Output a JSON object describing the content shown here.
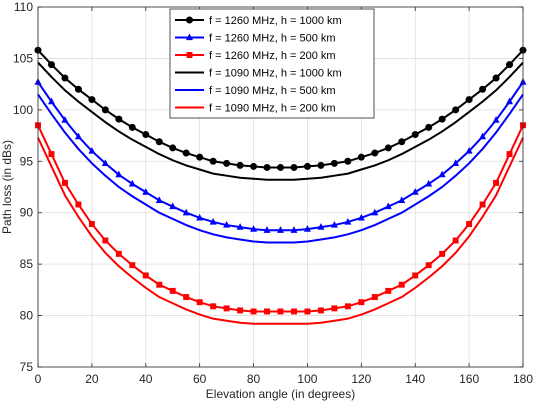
{
  "chart_data": {
    "type": "line",
    "xlabel": "Elevation angle (in degrees)",
    "ylabel": "Path loss (in dBs)",
    "xlim": [
      0,
      180
    ],
    "ylim": [
      75,
      110
    ],
    "xticks": [
      "0",
      "20",
      "40",
      "60",
      "80",
      "100",
      "120",
      "140",
      "160",
      "180"
    ],
    "yticks": [
      "75",
      "80",
      "85",
      "90",
      "95",
      "100",
      "105",
      "110"
    ],
    "grid": true,
    "legend_position": "top-center",
    "x": [
      0,
      5,
      10,
      15,
      20,
      25,
      30,
      35,
      40,
      45,
      50,
      55,
      60,
      65,
      70,
      75,
      80,
      85,
      90,
      95,
      100,
      105,
      110,
      115,
      120,
      125,
      130,
      135,
      140,
      145,
      150,
      155,
      160,
      165,
      170,
      175,
      180
    ],
    "series": [
      {
        "name": "f = 1260 MHz, h = 1000 km",
        "color": "#000000",
        "marker": "circle",
        "values": [
          105.8,
          104.4,
          103.1,
          102.0,
          101.0,
          100.0,
          99.1,
          98.3,
          97.6,
          96.9,
          96.3,
          95.8,
          95.4,
          95.0,
          94.8,
          94.6,
          94.5,
          94.4,
          94.4,
          94.4,
          94.5,
          94.6,
          94.8,
          95.0,
          95.4,
          95.8,
          96.3,
          96.9,
          97.6,
          98.3,
          99.1,
          100.0,
          101.0,
          102.0,
          103.1,
          104.4,
          105.8
        ]
      },
      {
        "name": "f = 1260 MHz, h = 500 km",
        "color": "#0000ff",
        "marker": "triangle",
        "values": [
          102.7,
          100.8,
          99.0,
          97.4,
          96.0,
          94.8,
          93.7,
          92.8,
          92.0,
          91.2,
          90.6,
          90.0,
          89.5,
          89.1,
          88.8,
          88.6,
          88.4,
          88.3,
          88.3,
          88.3,
          88.4,
          88.6,
          88.8,
          89.1,
          89.5,
          90.0,
          90.6,
          91.2,
          92.0,
          92.8,
          93.7,
          94.8,
          96.0,
          97.4,
          99.0,
          100.8,
          102.7
        ]
      },
      {
        "name": "f = 1260 MHz, h = 200 km",
        "color": "#ff0000",
        "marker": "square",
        "values": [
          98.5,
          95.7,
          92.9,
          90.8,
          88.9,
          87.3,
          86.0,
          84.9,
          83.9,
          83.0,
          82.4,
          81.8,
          81.3,
          80.9,
          80.7,
          80.5,
          80.4,
          80.4,
          80.4,
          80.4,
          80.4,
          80.5,
          80.7,
          80.9,
          81.3,
          81.8,
          82.4,
          83.0,
          83.9,
          84.9,
          86.0,
          87.3,
          88.9,
          90.8,
          92.9,
          95.7,
          98.5
        ]
      },
      {
        "name": "f = 1090 MHz, h = 1000 km",
        "color": "#000000",
        "marker": "none",
        "values": [
          104.6,
          103.2,
          101.9,
          100.8,
          99.8,
          98.8,
          97.9,
          97.1,
          96.4,
          95.7,
          95.1,
          94.6,
          94.2,
          93.8,
          93.6,
          93.4,
          93.3,
          93.2,
          93.2,
          93.2,
          93.3,
          93.4,
          93.6,
          93.8,
          94.2,
          94.6,
          95.1,
          95.7,
          96.4,
          97.1,
          97.9,
          98.8,
          99.8,
          100.8,
          101.9,
          103.2,
          104.6
        ]
      },
      {
        "name": "f = 1090 MHz, h = 500 km",
        "color": "#0000ff",
        "marker": "none",
        "values": [
          101.5,
          99.6,
          97.8,
          96.2,
          94.8,
          93.6,
          92.5,
          91.6,
          90.8,
          90.0,
          89.4,
          88.8,
          88.3,
          87.9,
          87.6,
          87.4,
          87.2,
          87.1,
          87.1,
          87.1,
          87.2,
          87.4,
          87.6,
          87.9,
          88.3,
          88.8,
          89.4,
          90.0,
          90.8,
          91.6,
          92.5,
          93.6,
          94.8,
          96.2,
          97.8,
          99.6,
          101.5
        ]
      },
      {
        "name": "f = 1090 MHz, h = 200 km",
        "color": "#ff0000",
        "marker": "none",
        "values": [
          97.3,
          94.5,
          91.7,
          89.6,
          87.7,
          86.1,
          84.8,
          83.7,
          82.7,
          81.8,
          81.2,
          80.6,
          80.1,
          79.7,
          79.5,
          79.3,
          79.2,
          79.2,
          79.2,
          79.2,
          79.2,
          79.3,
          79.5,
          79.7,
          80.1,
          80.6,
          81.2,
          81.8,
          82.7,
          83.7,
          84.8,
          86.1,
          87.7,
          89.6,
          91.7,
          94.5,
          97.3
        ]
      }
    ]
  }
}
